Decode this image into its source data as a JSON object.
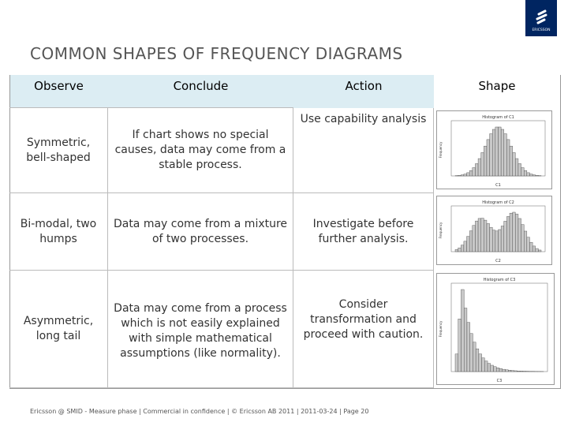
{
  "header": {
    "title": "COMMON SHAPES OF FREQUENCY DIAGRAMS",
    "logo": "ERICSSON"
  },
  "table": {
    "columns": [
      "Observe",
      "Conclude",
      "Action",
      "Shape"
    ],
    "rows": [
      [
        "Symmetric, bell-shaped",
        "If chart shows no special causes, data may come from a stable process.",
        "Use capability analysis"
      ],
      [
        "Bi-modal, two humps",
        "Data may come from a mixture of two processes.",
        "Investigate before further analysis."
      ],
      [
        "Asymmetric, long tail",
        "Data may come from a process which is not easily explained with simple mathematical assumptions (like normality).",
        "Consider transformation and proceed with caution."
      ]
    ]
  },
  "figures": [
    {
      "title": "Histogram of C1",
      "x_label": "C1",
      "y_label": "Frequency"
    },
    {
      "title": "Histogram of C2",
      "x_label": "C2",
      "y_label": "Frequency"
    },
    {
      "title": "Histogram of C3",
      "x_label": "C3",
      "y_label": "Frequency"
    }
  ],
  "footer": "Ericsson @ SMID - Measure phase  |  Commercial in confidence  |  © Ericsson AB 2011  |  2011-03-24  |  Page 20"
}
